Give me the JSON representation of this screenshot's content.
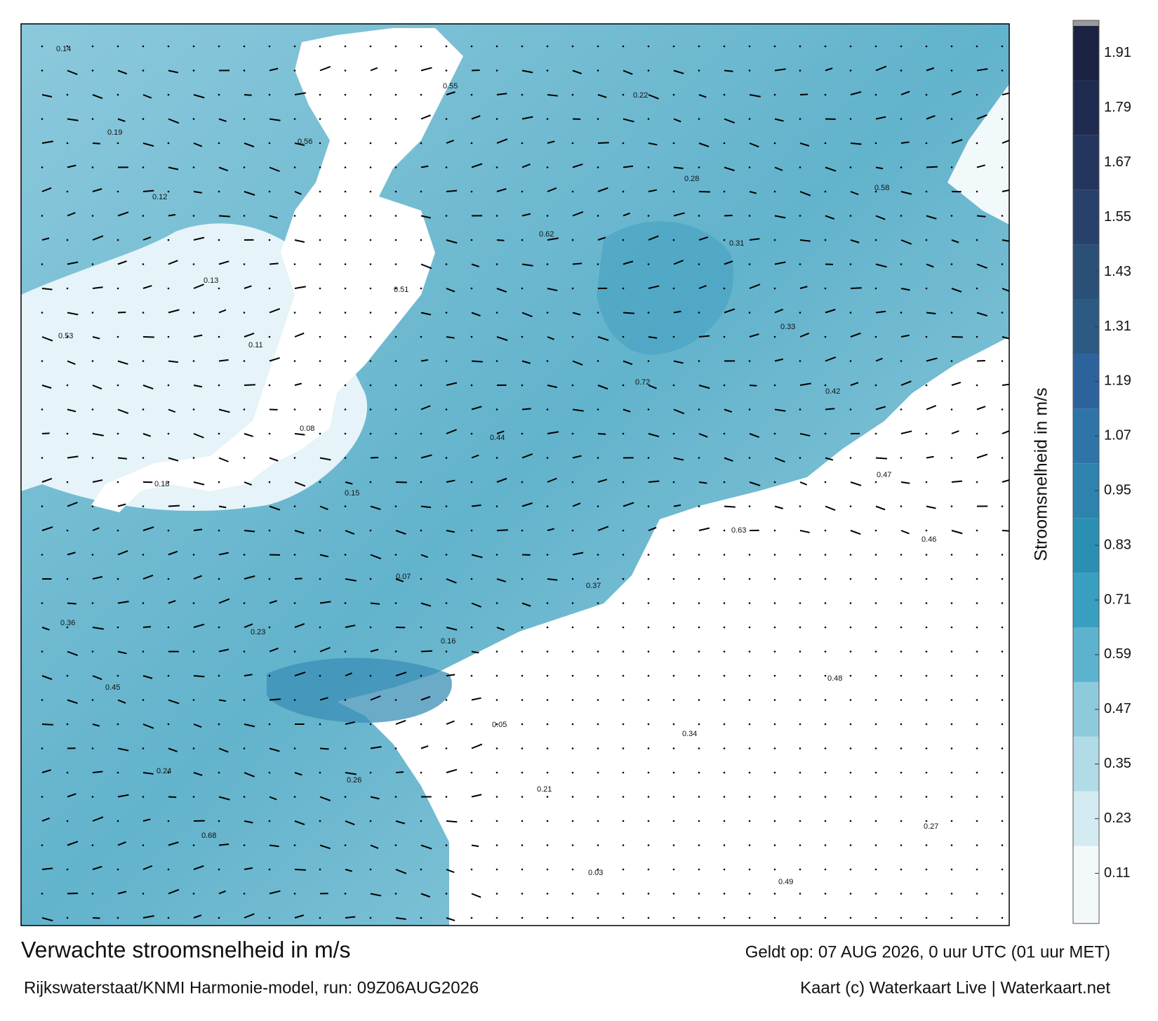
{
  "map": {
    "title": "Verwachte stroomsnelheid in m/s",
    "subtitle": "Rijkswaterstaat/KNMI Harmonie-model, run: 09Z06AUG2026",
    "valid": "Geldt op: 07 AUG 2026, 0 uur UTC (01 uur MET)",
    "credit": "Kaart (c) Waterkaart Live | Waterkaart.net",
    "colorbar": {
      "label": "Stroomsnelheid in m/s",
      "clim": [
        0,
        1.97
      ],
      "ticks": [
        0.11,
        0.23,
        0.35,
        0.47,
        0.59,
        0.71,
        0.83,
        0.95,
        1.07,
        1.19,
        1.31,
        1.43,
        1.55,
        1.67,
        1.79,
        1.91
      ],
      "colors": [
        "#f3f9fb",
        "#d4ebf2",
        "#b2dbe8",
        "#8ccadc",
        "#5db3cd",
        "#389fc0",
        "#2b8fb3",
        "#2e82ae",
        "#2f74a7",
        "#2d639c",
        "#2c5a82",
        "#2b5077",
        "#28416a",
        "#24355e",
        "#1f2b50",
        "#1a2141"
      ]
    },
    "labels": [
      "0.14",
      "0.12",
      "0.11",
      "0.15",
      "0.16",
      "0.21",
      "0.22",
      "0.31",
      "0.42",
      "0.46",
      "0.45",
      "0.68",
      "0.56",
      "0.51",
      "0.44",
      "0.37",
      "0.34",
      "0.49",
      "0.58",
      "0.53",
      "0.18",
      "0.23",
      "0.26",
      "0.55",
      "0.62",
      "0.72",
      "0.63",
      "0.48",
      "0.27",
      "0.19",
      "0.13",
      "0.08",
      "0.07",
      "0.05",
      "0.03",
      "0.28",
      "0.33",
      "0.47",
      "0.36",
      "0.24"
    ]
  }
}
